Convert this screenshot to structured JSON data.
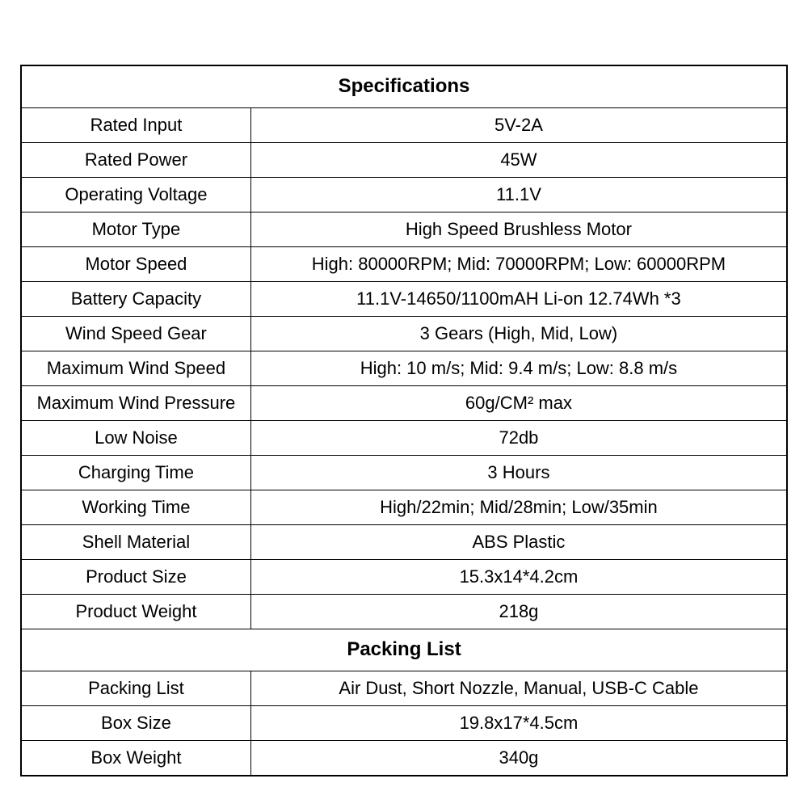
{
  "table": {
    "border_color": "#000000",
    "background_color": "#ffffff",
    "text_color": "#000000",
    "header_fontsize": 24,
    "cell_fontsize": 22,
    "sections": [
      {
        "header": "Specifications",
        "rows": [
          {
            "label": "Rated Input",
            "value": "5V-2A"
          },
          {
            "label": "Rated Power",
            "value": "45W"
          },
          {
            "label": "Operating Voltage",
            "value": "11.1V"
          },
          {
            "label": "Motor Type",
            "value": "High Speed Brushless Motor"
          },
          {
            "label": "Motor Speed",
            "value": "High: 80000RPM; Mid: 70000RPM; Low: 60000RPM"
          },
          {
            "label": "Battery Capacity",
            "value": "11.1V-14650/1100mAH Li-on 12.74Wh *3"
          },
          {
            "label": "Wind Speed Gear",
            "value": "3 Gears (High, Mid, Low)"
          },
          {
            "label": "Maximum Wind Speed",
            "value": "High: 10 m/s; Mid: 9.4 m/s; Low: 8.8 m/s"
          },
          {
            "label": "Maximum Wind Pressure",
            "value": "60g/CM² max"
          },
          {
            "label": "Low Noise",
            "value": "72db"
          },
          {
            "label": "Charging Time",
            "value": "3 Hours"
          },
          {
            "label": "Working Time",
            "value": "High/22min; Mid/28min; Low/35min"
          },
          {
            "label": "Shell Material",
            "value": "ABS Plastic"
          },
          {
            "label": "Product Size",
            "value": "15.3x14*4.2cm"
          },
          {
            "label": "Product Weight",
            "value": "218g"
          }
        ]
      },
      {
        "header": "Packing List",
        "rows": [
          {
            "label": "Packing List",
            "value": "Air Dust, Short Nozzle, Manual, USB-C Cable"
          },
          {
            "label": "Box Size",
            "value": "19.8x17*4.5cm"
          },
          {
            "label": "Box Weight",
            "value": "340g"
          }
        ]
      }
    ]
  }
}
